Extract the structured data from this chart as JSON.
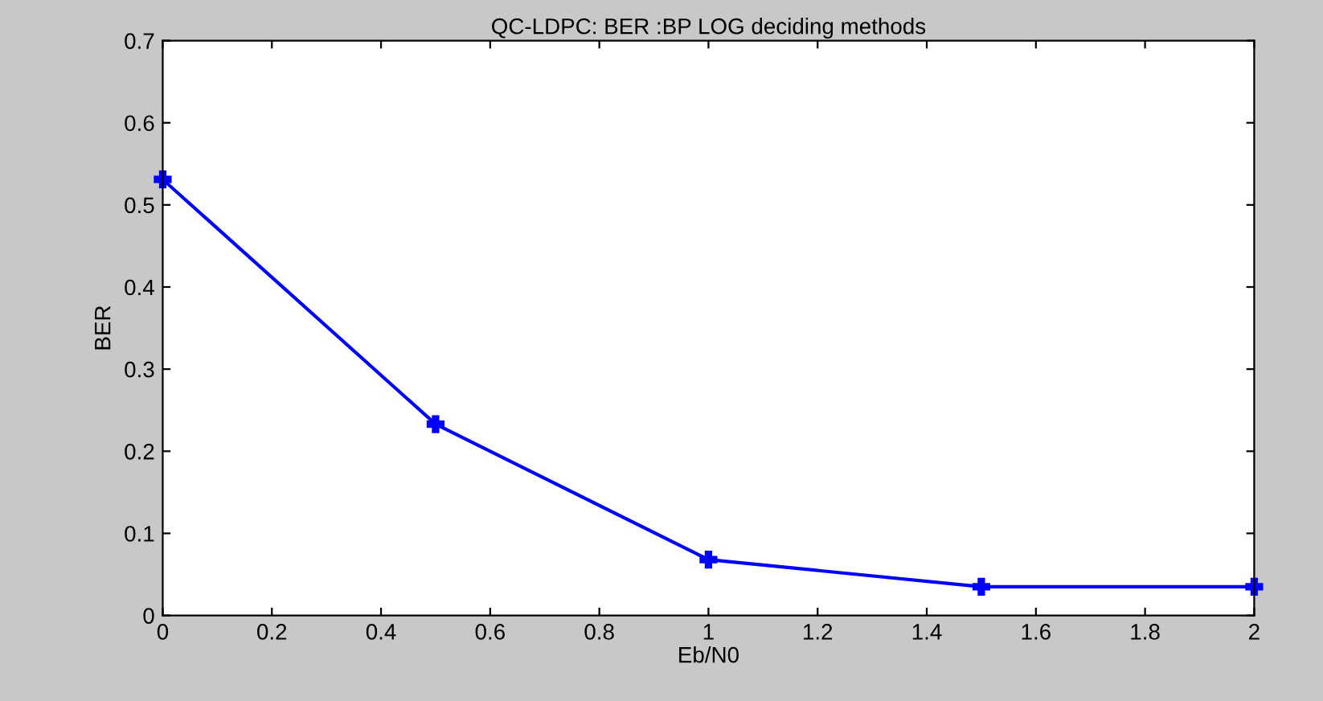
{
  "chart_data": {
    "type": "line",
    "title": "QC-LDPC: BER :BP LOG deciding methods",
    "xlabel": "Eb/N0",
    "ylabel": "BER",
    "x": [
      0,
      0.5,
      1,
      1.5,
      2
    ],
    "series": [
      {
        "color": "#0000ff",
        "values": [
          0.531,
          0.233,
          0.068,
          0.035,
          0.035
        ]
      }
    ],
    "xlim": [
      0,
      2
    ],
    "xticks": [
      0,
      0.2,
      0.4,
      0.6,
      0.8,
      1,
      1.2,
      1.4,
      1.6,
      1.8,
      2
    ],
    "ylim": [
      0,
      0.7
    ],
    "yticks": [
      0,
      0.1,
      0.2,
      0.3,
      0.4,
      0.5,
      0.6,
      0.7
    ],
    "marker": "cross",
    "line_style": "solid",
    "grid": false,
    "legend": false
  }
}
